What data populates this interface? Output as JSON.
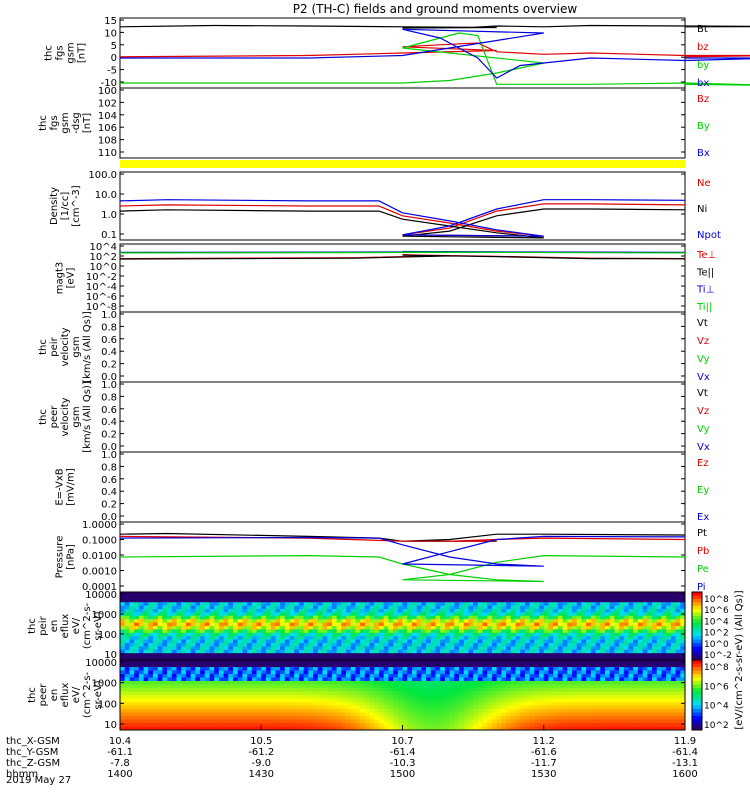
{
  "title": "P2 (TH-C) fields and ground moments overview",
  "date_label": "2019 May 27",
  "colors": {
    "black": "#000000",
    "red": "#e00000",
    "green": "#00d000",
    "blue": "#0000e0",
    "yellow": "#ffff00"
  },
  "chart_data": [
    {
      "type": "line",
      "ylabel": [
        "thc",
        "fgs",
        "gsm",
        "[nT]"
      ],
      "yticks": [
        "15",
        "10",
        "5",
        "0",
        "-5",
        "-10"
      ],
      "ylim": [
        -12,
        16
      ],
      "series": [
        {
          "name": "Bt",
          "color": "#000000",
          "x": [
            1400,
            1420,
            1440,
            1460,
            1480,
            1500,
            1515,
            1520,
            1530,
            1540,
            1560,
            1580,
            1600
          ],
          "y": [
            12.5,
            13,
            12.8,
            12.5,
            12.2,
            12,
            12.3,
            12.8,
            12.5,
            13,
            12.8,
            12.6,
            12.5
          ]
        },
        {
          "name": "bz",
          "color": "#e00000",
          "x": [
            1400,
            1440,
            1460,
            1480,
            1500,
            1510,
            1516,
            1520,
            1530,
            1540,
            1560,
            1580,
            1600
          ],
          "y": [
            0.5,
            1,
            2,
            3,
            4.5,
            5.5,
            6,
            2.5,
            1.5,
            2,
            1,
            1,
            0.5
          ]
        },
        {
          "name": "by",
          "color": "#00d000",
          "x": [
            1400,
            1440,
            1460,
            1470,
            1480,
            1490,
            1500,
            1508,
            1512,
            1516,
            1520,
            1540,
            1560,
            1580,
            1600
          ],
          "y": [
            -10,
            -10,
            -10,
            -9,
            -6,
            -2,
            4,
            8,
            10,
            9,
            -10.5,
            -10.5,
            -10,
            -11,
            -10.5
          ]
        },
        {
          "name": "bx",
          "color": "#0000e0",
          "x": [
            1400,
            1440,
            1460,
            1470,
            1480,
            1490,
            1500,
            1508,
            1512,
            1516,
            1520,
            1525,
            1530,
            1540,
            1560,
            1580,
            1600
          ],
          "y": [
            0,
            0,
            1,
            4,
            7,
            10,
            11.5,
            8,
            4,
            0,
            -8,
            -3,
            -2,
            0,
            -1,
            0,
            0
          ]
        }
      ]
    },
    {
      "type": "line",
      "ylabel": [
        "thc",
        "fgs",
        "gsm",
        "-dsg",
        "[nT]"
      ],
      "yticks": [
        "100",
        "102",
        "104",
        "106",
        "108",
        "110"
      ],
      "ylim": [
        111,
        99
      ],
      "series": [
        {
          "name": "Bz",
          "color": "#e00000"
        },
        {
          "name": "By",
          "color": "#00d000"
        },
        {
          "name": "Bx",
          "color": "#0000e0"
        }
      ]
    },
    {
      "type": "line",
      "scale": "log",
      "ylabel": [
        "Density",
        "[1/cc]",
        "[cm^-3]"
      ],
      "yticks": [
        "100.0",
        "10.0",
        "1.0",
        "0.1"
      ],
      "ylim": [
        0.03,
        300
      ],
      "series": [
        {
          "name": "Ne",
          "color": "#e00000",
          "x": [
            1400,
            1410,
            1440,
            1455,
            1460,
            1470,
            1480,
            1490,
            1500,
            1510,
            1520,
            1530,
            1540,
            1560,
            1600
          ],
          "y": [
            3,
            3.5,
            3,
            3,
            0.8,
            0.3,
            0.1,
            0.05,
            0.06,
            0.15,
            1.5,
            4,
            4,
            3.5,
            3.5
          ]
        },
        {
          "name": "Ni",
          "color": "#000000",
          "x": [
            1400,
            1410,
            1440,
            1455,
            1460,
            1470,
            1480,
            1490,
            1500,
            1510,
            1520,
            1530,
            1540,
            1560,
            1600
          ],
          "y": [
            1.5,
            1.8,
            1.5,
            1.5,
            0.5,
            0.2,
            0.08,
            0.04,
            0.05,
            0.1,
            0.8,
            2,
            2,
            1.8,
            1.6
          ]
        },
        {
          "name": "Npot",
          "color": "#0000e0",
          "x": [
            1400,
            1410,
            1440,
            1455,
            1460,
            1470,
            1480,
            1490,
            1500,
            1510,
            1520,
            1530,
            1540,
            1560,
            1600
          ],
          "y": [
            6,
            7,
            6,
            6,
            1.2,
            0.4,
            0.12,
            0.05,
            0.06,
            0.2,
            2,
            7,
            7,
            6.5,
            6
          ]
        }
      ]
    },
    {
      "type": "line",
      "scale": "log",
      "ylabel": [
        "magt3",
        "[eV]"
      ],
      "yticks": [
        "10^4",
        "10^2",
        "10^0",
        "10^-2",
        "10^-4",
        "10^-6",
        "10^-8"
      ],
      "ylim": [
        1e-09,
        100000.0
      ],
      "series": [
        {
          "name": "Te⊥",
          "color": "#e00000",
          "x": [
            1400,
            1450,
            1470,
            1500,
            1520,
            1540,
            1600
          ],
          "y": [
            100,
            150,
            400,
            600,
            300,
            120,
            100
          ]
        },
        {
          "name": "Te||",
          "color": "#000000",
          "x": [
            1400,
            1450,
            1470,
            1500,
            1520,
            1540,
            1600
          ],
          "y": [
            80,
            120,
            350,
            500,
            250,
            100,
            90
          ]
        },
        {
          "name": "Ti⊥",
          "color": "#0000e0",
          "x": [
            1400,
            1450,
            1470,
            1500,
            1520,
            1540,
            1600
          ],
          "y": [
            2000,
            2200,
            2500,
            2800,
            2400,
            2100,
            2000
          ]
        },
        {
          "name": "Ti||",
          "color": "#00d000",
          "x": [
            1400,
            1450,
            1470,
            1500,
            1520,
            1540,
            1600
          ],
          "y": [
            1500,
            1700,
            2000,
            2200,
            1900,
            1600,
            1500
          ]
        }
      ]
    },
    {
      "type": "line",
      "ylabel": [
        "thc",
        "peir",
        "velocity",
        "gsm",
        "[km/s (All Qs)]"
      ],
      "yticks": [
        "1.0",
        "0.8",
        "0.6",
        "0.4",
        "0.2",
        "0.0"
      ],
      "ylim": [
        0,
        1
      ],
      "series": [
        {
          "name": "Vt",
          "color": "#000000"
        },
        {
          "name": "Vz",
          "color": "#e00000"
        },
        {
          "name": "Vy",
          "color": "#00d000"
        },
        {
          "name": "Vx",
          "color": "#0000e0"
        }
      ]
    },
    {
      "type": "line",
      "ylabel": [
        "thc",
        "peer",
        "velocity",
        "gsm",
        "[km/s (All Qs)]"
      ],
      "yticks": [
        "1.0",
        "0.8",
        "0.6",
        "0.4",
        "0.2",
        "0.0"
      ],
      "ylim": [
        0,
        1
      ],
      "series": [
        {
          "name": "Vt",
          "color": "#000000"
        },
        {
          "name": "Vz",
          "color": "#e00000"
        },
        {
          "name": "Vy",
          "color": "#00d000"
        },
        {
          "name": "Vx",
          "color": "#0000e0"
        }
      ]
    },
    {
      "type": "line",
      "ylabel": [
        "E=-VxB",
        "[mV/m]"
      ],
      "yticks": [
        "1.0",
        "0.8",
        "0.6",
        "0.4",
        "0.2",
        "0.0"
      ],
      "ylim": [
        0,
        1
      ],
      "series": [
        {
          "name": "Ez",
          "color": "#e00000"
        },
        {
          "name": "Ey",
          "color": "#00d000"
        },
        {
          "name": "Ex",
          "color": "#0000e0"
        }
      ]
    },
    {
      "type": "line",
      "scale": "log",
      "ylabel": [
        "Pressure",
        "[nPa]"
      ],
      "yticks": [
        "1.0000",
        "0.1000",
        "0.0100",
        "0.0010",
        "0.0001"
      ],
      "ylim": [
        0.0001,
        1
      ],
      "series": [
        {
          "name": "Pt",
          "color": "#000000",
          "x": [
            1400,
            1410,
            1440,
            1455,
            1460,
            1480,
            1500,
            1510,
            1520,
            1530,
            1600
          ],
          "y": [
            0.2,
            0.22,
            0.15,
            0.12,
            0.08,
            0.08,
            0.08,
            0.1,
            0.2,
            0.2,
            0.18
          ]
        },
        {
          "name": "Pb",
          "color": "#e00000",
          "x": [
            1400,
            1440,
            1460,
            1480,
            1500,
            1510,
            1520,
            1530,
            1600
          ],
          "y": [
            0.15,
            0.12,
            0.08,
            0.08,
            0.08,
            0.08,
            0.1,
            0.12,
            0.1
          ]
        },
        {
          "name": "Pe",
          "color": "#00d000",
          "x": [
            1400,
            1440,
            1455,
            1460,
            1470,
            1480,
            1490,
            1500,
            1510,
            1520,
            1530,
            1600
          ],
          "y": [
            0.01,
            0.012,
            0.01,
            0.004,
            0.001,
            0.0005,
            0.0004,
            0.0005,
            0.001,
            0.005,
            0.012,
            0.01
          ]
        },
        {
          "name": "Pi",
          "color": "#0000e0",
          "x": [
            1400,
            1440,
            1455,
            1460,
            1470,
            1480,
            1490,
            1500,
            1510,
            1520,
            1530,
            1600
          ],
          "y": [
            0.12,
            0.13,
            0.12,
            0.05,
            0.01,
            0.004,
            0.003,
            0.004,
            0.02,
            0.1,
            0.15,
            0.14
          ]
        }
      ]
    },
    {
      "type": "heatmap",
      "ylabel": [
        "thc",
        "peir",
        "en",
        "eflux",
        "eV/",
        "(cm^2-s-",
        "sr-eV)"
      ],
      "yticks": [
        "10000",
        "1000",
        "100",
        "10"
      ],
      "colorbar_ticks": [
        "10^8",
        "10^6",
        "10^4",
        "10^2",
        "10^0",
        "10^-2"
      ],
      "colorbar_label": "[eV/(cm^2-s-sr-eV) (All Qs)]"
    },
    {
      "type": "heatmap",
      "ylabel": [
        "thc",
        "peer",
        "en",
        "eflux",
        "eV/",
        "(cm^2-s-",
        "sr-eV)"
      ],
      "yticks": [
        "10000",
        "1000",
        "100",
        "10"
      ],
      "colorbar_ticks": [
        "10^8",
        "10^6",
        "10^4",
        "10^2"
      ],
      "colorbar_label": "[eV/(cm^2-s-sr-eV) (All Qs)]"
    }
  ],
  "xaxis": {
    "labels": [
      "thc_X-GSM",
      "thc_Y-GSM",
      "thc_Z-GSM",
      "hhmm"
    ],
    "ticks": [
      {
        "x": 1400,
        "rows": [
          "10.4",
          "-61.1",
          "-7.8",
          "1400"
        ]
      },
      {
        "x": 1430,
        "rows": [
          "10.5",
          "-61.2",
          "-9.0",
          "1430"
        ]
      },
      {
        "x": 1500,
        "rows": [
          "10.7",
          "-61.4",
          "-10.3",
          "1500"
        ]
      },
      {
        "x": 1530,
        "rows": [
          "11.2",
          "-61.6",
          "-11.7",
          "1530"
        ]
      },
      {
        "x": 1600,
        "rows": [
          "11.9",
          "-61.4",
          "-13.1",
          "1600"
        ]
      }
    ]
  }
}
